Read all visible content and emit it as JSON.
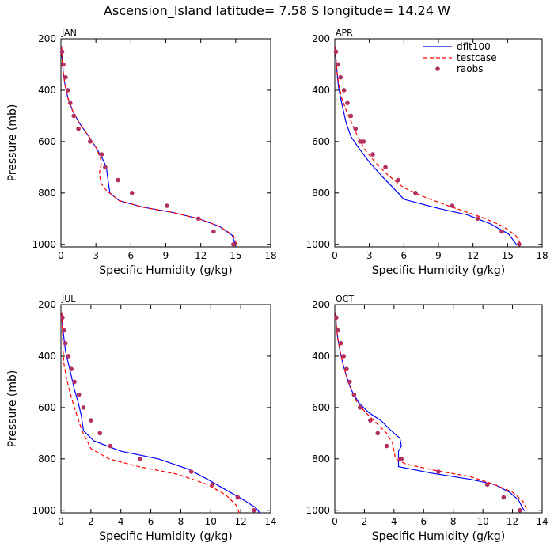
{
  "figure": {
    "title": "Ascension_Island  latitude= 7.58 S longitude= 14.24 W"
  },
  "colors": {
    "dflt100": "#0000ff",
    "testcase": "#ff0000",
    "raobs": "#b03060"
  },
  "chart_data": [
    {
      "type": "line",
      "panel_label": "JAN",
      "xlabel": "Specific Humidity (g/kg)",
      "ylabel": "Pressure (mb)",
      "xlim": [
        0,
        18
      ],
      "ylim": [
        1010,
        200
      ],
      "xticks": [
        0,
        3,
        6,
        9,
        12,
        15,
        18
      ],
      "yticks": [
        200,
        400,
        600,
        800,
        1000
      ],
      "legend": null,
      "series": [
        {
          "name": "dflt100",
          "style": "solid",
          "x": [
            0.05,
            0.1,
            0.2,
            0.35,
            0.6,
            1.0,
            1.6,
            2.4,
            3.1,
            3.6,
            3.9,
            3.95,
            4.2,
            5.0,
            7.0,
            9.5,
            11.8,
            13.6,
            14.7,
            15.0
          ],
          "y": [
            230,
            280,
            330,
            380,
            430,
            480,
            530,
            580,
            630,
            670,
            700,
            720,
            800,
            830,
            855,
            875,
            900,
            930,
            965,
            1003
          ]
        },
        {
          "name": "testcase",
          "style": "dashed",
          "x": [
            0.05,
            0.1,
            0.2,
            0.35,
            0.6,
            1.0,
            1.6,
            2.4,
            3.1,
            3.5,
            3.3,
            3.4,
            3.9,
            5.0,
            7.0,
            9.5,
            11.8,
            13.6,
            14.8,
            15.1
          ],
          "y": [
            230,
            280,
            330,
            380,
            430,
            480,
            530,
            580,
            630,
            680,
            720,
            760,
            790,
            830,
            855,
            875,
            900,
            930,
            965,
            1003
          ]
        },
        {
          "name": "raobs",
          "style": "markers",
          "x": [
            0.1,
            0.2,
            0.4,
            0.6,
            0.8,
            1.1,
            1.5,
            2.5,
            3.5,
            3.8,
            4.9,
            6.1,
            9.1,
            11.8,
            13.1,
            14.8
          ],
          "y": [
            250,
            300,
            350,
            400,
            450,
            500,
            550,
            600,
            650,
            700,
            750,
            800,
            850,
            900,
            950,
            1000
          ]
        }
      ]
    },
    {
      "type": "line",
      "panel_label": "APR",
      "xlabel": "Specific Humidity (g/kg)",
      "ylabel": "",
      "xlim": [
        0,
        18
      ],
      "ylim": [
        1010,
        200
      ],
      "xticks": [
        0,
        3,
        6,
        9,
        12,
        15,
        18
      ],
      "yticks": [
        200,
        400,
        600,
        800,
        1000
      ],
      "legend": {
        "position": "top-right",
        "entries": [
          "dflt100",
          "testcase",
          "raobs"
        ]
      },
      "series": [
        {
          "name": "dflt100",
          "style": "solid",
          "x": [
            0.05,
            0.1,
            0.2,
            0.3,
            0.5,
            0.75,
            1.0,
            1.4,
            2.0,
            3.0,
            4.2,
            5.5,
            6.0,
            9.0,
            11.5,
            13.5,
            15.1,
            15.8
          ],
          "y": [
            230,
            280,
            330,
            380,
            430,
            480,
            530,
            580,
            620,
            680,
            740,
            800,
            825,
            860,
            885,
            920,
            960,
            1003
          ]
        },
        {
          "name": "testcase",
          "style": "dashed",
          "x": [
            0.05,
            0.1,
            0.2,
            0.35,
            0.6,
            1.0,
            1.5,
            2.0,
            2.6,
            3.5,
            4.6,
            6.0,
            8.0,
            10.5,
            12.8,
            14.6,
            15.7,
            16.2
          ],
          "y": [
            230,
            280,
            330,
            380,
            430,
            480,
            530,
            580,
            630,
            680,
            730,
            780,
            820,
            860,
            895,
            930,
            965,
            1003
          ]
        },
        {
          "name": "raobs",
          "style": "markers",
          "x": [
            0.1,
            0.3,
            0.5,
            0.8,
            1.1,
            1.4,
            1.8,
            2.2,
            2.5,
            3.3,
            4.4,
            5.5,
            7.0,
            10.2,
            12.4,
            14.5,
            16.0
          ],
          "y": [
            250,
            300,
            350,
            400,
            450,
            500,
            550,
            600,
            600,
            650,
            700,
            750,
            800,
            850,
            900,
            950,
            1000
          ]
        }
      ]
    },
    {
      "type": "line",
      "panel_label": "JUL",
      "xlabel": "Specific Humidity (g/kg)",
      "ylabel": "Pressure (mb)",
      "xlim": [
        0,
        14
      ],
      "ylim": [
        1010,
        200
      ],
      "xticks": [
        0,
        2,
        4,
        6,
        8,
        10,
        12,
        14
      ],
      "yticks": [
        200,
        400,
        600,
        800,
        1000
      ],
      "legend": null,
      "series": [
        {
          "name": "dflt100",
          "style": "solid",
          "x": [
            0.05,
            0.1,
            0.2,
            0.3,
            0.5,
            0.7,
            0.9,
            1.15,
            1.35,
            1.5,
            2.2,
            4.0,
            6.5,
            8.5,
            9.8,
            11.0,
            12.2,
            13.0,
            13.3
          ],
          "y": [
            230,
            280,
            330,
            380,
            430,
            480,
            530,
            580,
            630,
            690,
            730,
            770,
            800,
            840,
            880,
            920,
            960,
            990,
            1013
          ]
        },
        {
          "name": "testcase",
          "style": "dashed",
          "x": [
            0.05,
            0.1,
            0.15,
            0.2,
            0.35,
            0.55,
            0.9,
            1.4,
            2.0,
            3.2,
            5.2,
            7.8,
            9.8,
            11.0,
            11.7,
            11.9
          ],
          "y": [
            230,
            300,
            380,
            430,
            480,
            530,
            600,
            690,
            760,
            800,
            830,
            860,
            900,
            940,
            980,
            1010
          ]
        },
        {
          "name": "raobs",
          "style": "markers",
          "x": [
            0.1,
            0.2,
            0.3,
            0.5,
            0.7,
            0.9,
            1.2,
            1.5,
            2.0,
            2.6,
            3.3,
            5.3,
            8.7,
            10.1,
            11.8,
            12.9
          ],
          "y": [
            250,
            300,
            350,
            400,
            450,
            500,
            550,
            600,
            650,
            700,
            750,
            800,
            850,
            900,
            950,
            1000
          ]
        }
      ]
    },
    {
      "type": "line",
      "panel_label": "OCT",
      "xlabel": "Specific Humidity (g/kg)",
      "ylabel": "",
      "xlim": [
        0,
        14
      ],
      "ylim": [
        1010,
        200
      ],
      "xticks": [
        0,
        2,
        4,
        6,
        8,
        10,
        12,
        14
      ],
      "yticks": [
        200,
        400,
        600,
        800,
        1000
      ],
      "legend": null,
      "series": [
        {
          "name": "dflt100",
          "style": "solid",
          "x": [
            0.05,
            0.1,
            0.2,
            0.35,
            0.55,
            0.8,
            1.1,
            1.6,
            2.3,
            3.1,
            3.8,
            4.4,
            4.5,
            4.3,
            4.3,
            6.5,
            9.2,
            10.8,
            11.8,
            12.4,
            12.8
          ],
          "y": [
            230,
            280,
            330,
            380,
            430,
            480,
            530,
            580,
            620,
            650,
            690,
            720,
            750,
            770,
            830,
            855,
            880,
            900,
            930,
            960,
            1003
          ]
        },
        {
          "name": "testcase",
          "style": "dashed",
          "x": [
            0.05,
            0.1,
            0.2,
            0.35,
            0.55,
            0.8,
            1.1,
            1.5,
            2.1,
            2.8,
            3.5,
            3.9,
            4.0,
            4.1,
            4.8,
            6.8,
            9.2,
            10.8,
            12.0,
            12.7,
            13.0
          ],
          "y": [
            230,
            280,
            330,
            380,
            430,
            480,
            530,
            580,
            620,
            660,
            700,
            740,
            770,
            800,
            820,
            845,
            870,
            900,
            930,
            965,
            1003
          ]
        },
        {
          "name": "raobs",
          "style": "markers",
          "x": [
            0.1,
            0.2,
            0.4,
            0.6,
            0.8,
            1.0,
            1.3,
            1.7,
            2.4,
            2.9,
            3.5,
            4.4,
            4.5,
            7.0,
            10.3,
            11.4,
            12.5
          ],
          "y": [
            250,
            300,
            350,
            400,
            450,
            500,
            550,
            600,
            650,
            700,
            750,
            800,
            800,
            850,
            900,
            950,
            1000
          ]
        }
      ]
    }
  ]
}
